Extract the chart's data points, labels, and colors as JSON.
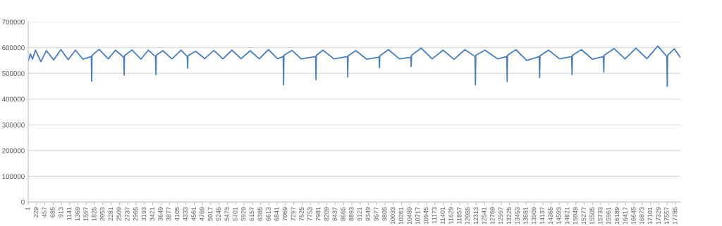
{
  "chart_data": {
    "type": "line",
    "color": "#4a7ebb",
    "x": [
      1,
      60,
      120,
      200,
      350,
      500,
      700,
      900,
      1100,
      1300,
      1500,
      1735,
      1745,
      1755,
      1950,
      2200,
      2400,
      2627,
      2637,
      2647,
      2850,
      3100,
      3300,
      3499,
      3509,
      3519,
      3700,
      3950,
      4200,
      4371,
      4381,
      4391,
      4600,
      4850,
      5100,
      5350,
      5600,
      5850,
      6100,
      6350,
      6600,
      6850,
      7007,
      7017,
      7027,
      7250,
      7500,
      7898,
      7908,
      7918,
      8100,
      8400,
      8770,
      8780,
      8790,
      9000,
      9300,
      9642,
      9652,
      9662,
      9900,
      10200,
      10514,
      10524,
      10534,
      10800,
      11100,
      11400,
      11700,
      12000,
      12278,
      12288,
      12298,
      12550,
      12900,
      13150,
      13160,
      13170,
      13400,
      13700,
      14042,
      14052,
      14062,
      14300,
      14600,
      14933,
      14943,
      14953,
      15200,
      15500,
      15805,
      15815,
      15825,
      16100,
      16400,
      16700,
      17000,
      17300,
      17549,
      17559,
      17569,
      17750,
      17920
    ],
    "values": [
      548000,
      575000,
      555000,
      590000,
      545000,
      588000,
      552000,
      592000,
      553000,
      590000,
      555000,
      565000,
      470000,
      570000,
      593000,
      556000,
      590000,
      562000,
      493000,
      568000,
      591000,
      555000,
      590000,
      565000,
      495000,
      570000,
      588000,
      556000,
      590000,
      565000,
      520000,
      568000,
      586000,
      557000,
      589000,
      556000,
      590000,
      557000,
      588000,
      556000,
      592000,
      557000,
      565000,
      455000,
      570000,
      589000,
      556000,
      565000,
      475000,
      570000,
      590000,
      556000,
      565000,
      486000,
      568000,
      588000,
      555000,
      563000,
      522000,
      568000,
      592000,
      556000,
      562000,
      527000,
      570000,
      598000,
      556000,
      590000,
      554000,
      592000,
      565000,
      455000,
      570000,
      590000,
      556000,
      565000,
      468000,
      570000,
      592000,
      550000,
      565000,
      484000,
      568000,
      590000,
      556000,
      565000,
      495000,
      570000,
      592000,
      555000,
      565000,
      505000,
      570000,
      596000,
      556000,
      598000,
      557000,
      606000,
      565000,
      450000,
      570000,
      595000,
      562000
    ],
    "xlim": [
      1,
      17920
    ],
    "xticks": [
      1,
      229,
      457,
      685,
      913,
      1141,
      1369,
      1597,
      1825,
      2053,
      2281,
      2509,
      2737,
      2965,
      3193,
      3421,
      3649,
      3877,
      4105,
      4333,
      4561,
      4789,
      5017,
      5245,
      5473,
      5701,
      5929,
      6157,
      6385,
      6613,
      6841,
      7069,
      7297,
      7525,
      7753,
      7981,
      8209,
      8437,
      8665,
      8893,
      9121,
      9349,
      9577,
      9805,
      10033,
      10261,
      10489,
      10717,
      10945,
      11173,
      11401,
      11629,
      11857,
      12085,
      12313,
      12541,
      12769,
      12997,
      13225,
      13453,
      13681,
      13909,
      14137,
      14365,
      14593,
      14821,
      15049,
      15277,
      15505,
      15733,
      15961,
      16189,
      16417,
      16645,
      16873,
      17101,
      17329,
      17557,
      17785
    ],
    "ylim": [
      0,
      700000
    ],
    "yticks": [
      0,
      100000,
      200000,
      300000,
      400000,
      500000,
      600000,
      700000
    ],
    "grid": "y",
    "marker": "none",
    "line_style": "solid"
  }
}
